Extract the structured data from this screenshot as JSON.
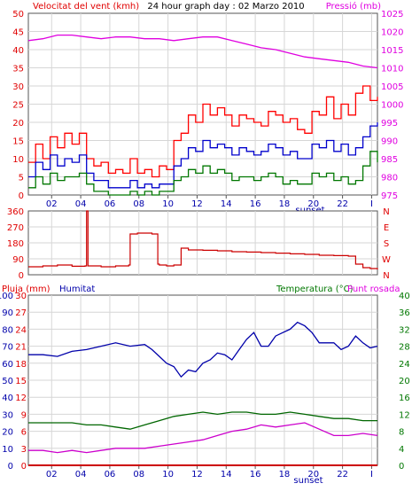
{
  "chart_data": [
    {
      "type": "line",
      "title": "24 hour graph day : 02 Marzo 2010",
      "left_label": "Velocitat del vent (kmh)",
      "right_label": "Pressió (mb)",
      "x_tick_labels": [
        "02",
        "04",
        "06",
        "08",
        "10",
        "12",
        "14",
        "16",
        "18",
        "20",
        "22",
        "I"
      ],
      "sunset_label": "sunset",
      "ylim_left": [
        0,
        50
      ],
      "y_ticks_left": [
        "0",
        "5",
        "10",
        "15",
        "20",
        "25",
        "30",
        "35",
        "40",
        "45",
        "50"
      ],
      "ylim_right": [
        975,
        1025
      ],
      "y_ticks_right": [
        "975",
        "980",
        "985",
        "990",
        "995",
        "1000",
        "1005",
        "1010",
        "1015",
        "1020",
        "1025"
      ],
      "grid": true,
      "series": [
        {
          "name": "gust",
          "color": "#ff0000",
          "axis": "left",
          "x": [
            0,
            0.5,
            1,
            1.5,
            2,
            2.5,
            3,
            3.5,
            4,
            4.5,
            5,
            5.5,
            6,
            6.5,
            7,
            7.5,
            8,
            8.5,
            9,
            9.5,
            10,
            10.5,
            11,
            11.5,
            12,
            12.5,
            13,
            13.5,
            14,
            14.5,
            15,
            15.5,
            16,
            16.5,
            17,
            17.5,
            18,
            18.5,
            19,
            19.5,
            20,
            20.5,
            21,
            21.5,
            22,
            22.5,
            23,
            23.5,
            24
          ],
          "values": [
            9,
            14,
            10,
            16,
            13,
            17,
            14,
            17,
            10,
            8,
            9,
            6,
            7,
            6,
            10,
            6,
            7,
            5,
            8,
            7,
            15,
            17,
            22,
            20,
            25,
            22,
            24,
            22,
            19,
            22,
            21,
            20,
            19,
            23,
            22,
            20,
            21,
            18,
            17,
            23,
            22,
            27,
            21,
            25,
            22,
            28,
            30,
            26,
            27
          ]
        },
        {
          "name": "average",
          "color": "#0000cc",
          "axis": "left",
          "x": [
            0,
            0.5,
            1,
            1.5,
            2,
            2.5,
            3,
            3.5,
            4,
            4.5,
            5,
            5.5,
            6,
            6.5,
            7,
            7.5,
            8,
            8.5,
            9,
            9.5,
            10,
            10.5,
            11,
            11.5,
            12,
            12.5,
            13,
            13.5,
            14,
            14.5,
            15,
            15.5,
            16,
            16.5,
            17,
            17.5,
            18,
            18.5,
            19,
            19.5,
            20,
            20.5,
            21,
            21.5,
            22,
            22.5,
            23,
            23.5,
            24
          ],
          "values": [
            5,
            9,
            7,
            11,
            8,
            10,
            9,
            11,
            6,
            4,
            4,
            2,
            2,
            2,
            4,
            2,
            3,
            2,
            3,
            3,
            8,
            10,
            13,
            12,
            15,
            13,
            14,
            13,
            11,
            13,
            12,
            11,
            12,
            14,
            13,
            11,
            12,
            10,
            10,
            14,
            13,
            15,
            12,
            14,
            11,
            13,
            16,
            19,
            20
          ]
        },
        {
          "name": "low",
          "color": "#007700",
          "axis": "left",
          "x": [
            0,
            0.5,
            1,
            1.5,
            2,
            2.5,
            3,
            3.5,
            4,
            4.5,
            5,
            5.5,
            6,
            6.5,
            7,
            7.5,
            8,
            8.5,
            9,
            9.5,
            10,
            10.5,
            11,
            11.5,
            12,
            12.5,
            13,
            13.5,
            14,
            14.5,
            15,
            15.5,
            16,
            16.5,
            17,
            17.5,
            18,
            18.5,
            19,
            19.5,
            20,
            20.5,
            21,
            21.5,
            22,
            22.5,
            23,
            23.5,
            24
          ],
          "values": [
            2,
            5,
            3,
            6,
            4,
            5,
            5,
            6,
            3,
            1,
            1,
            0,
            0,
            0,
            1,
            0,
            1,
            0,
            1,
            1,
            4,
            5,
            7,
            6,
            8,
            6,
            7,
            6,
            4,
            5,
            5,
            4,
            5,
            6,
            5,
            3,
            4,
            3,
            3,
            6,
            5,
            6,
            4,
            5,
            3,
            4,
            8,
            12,
            9
          ]
        },
        {
          "name": "pressure",
          "color": "#e000e0",
          "axis": "right",
          "x": [
            0,
            1,
            2,
            3,
            4,
            5,
            6,
            7,
            8,
            9,
            10,
            11,
            12,
            13,
            14,
            15,
            16,
            17,
            18,
            19,
            20,
            21,
            22,
            23,
            24
          ],
          "values": [
            1017.5,
            1018,
            1019,
            1019,
            1018.5,
            1018,
            1018.5,
            1018.5,
            1018,
            1018,
            1017.5,
            1018,
            1018.5,
            1018.5,
            1017.5,
            1016.5,
            1015.5,
            1015,
            1014,
            1013,
            1012.5,
            1012,
            1011.5,
            1010.5,
            1010
          ]
        }
      ]
    },
    {
      "type": "line",
      "left_label": "",
      "ylim": [
        0,
        360
      ],
      "y_ticks": [
        "0",
        "90",
        "180",
        "270",
        "360"
      ],
      "right_letters": [
        "N",
        "W",
        "S",
        "E",
        "N"
      ],
      "x_tick_labels": [
        "02",
        "04",
        "06",
        "08",
        "10",
        "12",
        "14",
        "16",
        "18",
        "20",
        "22",
        "I"
      ],
      "grid": true,
      "series": [
        {
          "name": "direction",
          "color": "#cc0000",
          "x": [
            0,
            1,
            2,
            3,
            3.9,
            4,
            4.1,
            5,
            6,
            6.9,
            7,
            7.5,
            8,
            8.5,
            8.9,
            9,
            9.5,
            10,
            10.5,
            11,
            12,
            13,
            14,
            15,
            16,
            17,
            18,
            19,
            20,
            21,
            22,
            22.5,
            23,
            23.5,
            24
          ],
          "values": [
            45,
            50,
            55,
            48,
            50,
            360,
            50,
            45,
            50,
            55,
            230,
            235,
            235,
            230,
            60,
            55,
            50,
            55,
            150,
            140,
            138,
            135,
            130,
            128,
            125,
            122,
            118,
            115,
            110,
            108,
            105,
            60,
            40,
            35,
            30
          ]
        }
      ]
    },
    {
      "type": "line",
      "left_label": "Pluja (mm)",
      "humidity_label": "Humitat",
      "right_label": "Temperatura (°C)",
      "dewpoint_label": "Punt rosada",
      "x_tick_labels": [
        "02",
        "04",
        "06",
        "08",
        "10",
        "12",
        "14",
        "16",
        "18",
        "20",
        "22",
        "I"
      ],
      "sunset_label": "sunset",
      "ylim_rain": [
        0,
        30
      ],
      "y_ticks_rain": [
        "0",
        "3",
        "6",
        "9",
        "12",
        "15",
        "18",
        "21",
        "24",
        "27",
        "30"
      ],
      "ylim_humidity": [
        0,
        100
      ],
      "y_ticks_humidity": [
        "0",
        "10",
        "20",
        "30",
        "40",
        "50",
        "60",
        "70",
        "80",
        "90",
        "100"
      ],
      "ylim_temp": [
        0,
        40
      ],
      "y_ticks_temp": [
        "0",
        "4",
        "8",
        "12",
        "16",
        "20",
        "24",
        "28",
        "32",
        "36",
        "40"
      ],
      "grid": true,
      "series": [
        {
          "name": "Humitat",
          "color": "#0000aa",
          "axis": "humidity",
          "x": [
            0,
            1,
            2,
            3,
            4,
            5,
            6,
            7,
            8,
            8.5,
            9,
            9.5,
            10,
            10.5,
            11,
            11.5,
            12,
            12.5,
            13,
            13.5,
            14,
            14.5,
            15,
            15.5,
            16,
            16.5,
            17,
            17.5,
            18,
            18.5,
            19,
            19.5,
            20,
            21,
            21.5,
            22,
            22.5,
            23,
            23.5,
            24
          ],
          "values": [
            65,
            65,
            64,
            67,
            68,
            70,
            72,
            70,
            71,
            68,
            64,
            60,
            58,
            52,
            56,
            55,
            60,
            62,
            66,
            65,
            62,
            68,
            74,
            78,
            70,
            70,
            76,
            78,
            80,
            84,
            82,
            78,
            72,
            72,
            68,
            70,
            76,
            72,
            69,
            70
          ]
        },
        {
          "name": "Temperatura",
          "color": "#006600",
          "axis": "temp",
          "x": [
            0,
            1,
            2,
            3,
            4,
            5,
            6,
            7,
            8,
            9,
            10,
            11,
            12,
            13,
            14,
            15,
            16,
            17,
            18,
            19,
            20,
            21,
            22,
            23,
            24
          ],
          "values": [
            10,
            10,
            10,
            10,
            9.5,
            9.5,
            9,
            8.5,
            9.5,
            10.5,
            11.5,
            12,
            12.5,
            12,
            12.5,
            12.5,
            12,
            12,
            12.5,
            12,
            11.5,
            11,
            11,
            10.5,
            10.5
          ]
        },
        {
          "name": "Punt rosada",
          "color": "#cc00cc",
          "axis": "temp",
          "x": [
            0,
            1,
            2,
            3,
            4,
            5,
            6,
            7,
            8,
            9,
            10,
            11,
            12,
            13,
            14,
            15,
            16,
            17,
            18,
            19,
            20,
            21,
            22,
            23,
            24
          ],
          "values": [
            3.5,
            3.5,
            3,
            3.5,
            3,
            3.5,
            4,
            4,
            4,
            4.5,
            5,
            5.5,
            6,
            7,
            8,
            8.5,
            9.5,
            9,
            9.5,
            10,
            8.5,
            7,
            7,
            7.5,
            7
          ]
        },
        {
          "name": "Pluja",
          "color": "#cc0000",
          "axis": "rain",
          "x": [
            0,
            24
          ],
          "values": [
            0,
            0
          ]
        }
      ]
    }
  ]
}
